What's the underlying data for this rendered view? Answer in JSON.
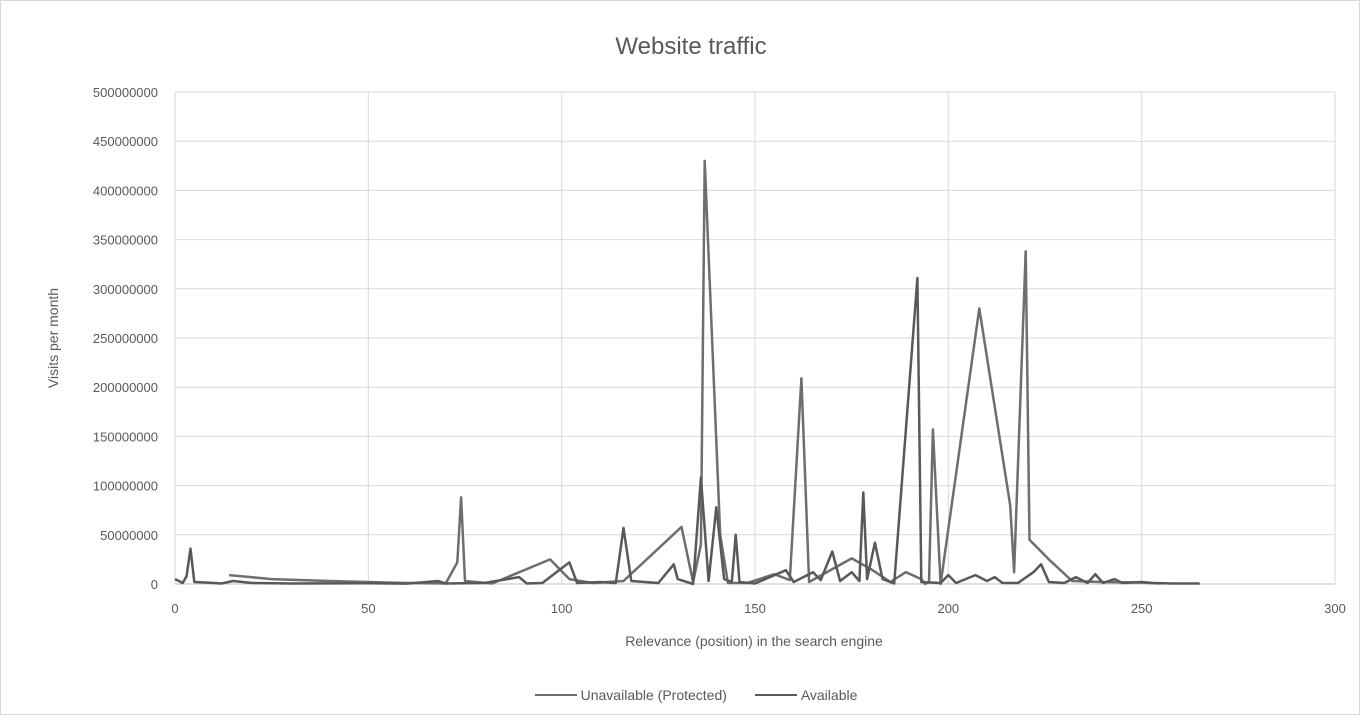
{
  "chart_data": {
    "type": "line",
    "title": "Website traffic",
    "xlabel": "Relevance (position) in the search engine",
    "ylabel": "Visits per month",
    "xlim": [
      0,
      300
    ],
    "ylim": [
      0,
      500000000
    ],
    "x_ticks": [
      "0",
      "50",
      "100",
      "150",
      "200",
      "250",
      "300"
    ],
    "y_ticks": [
      "0",
      "50000000",
      "100000000",
      "150000000",
      "200000000",
      "250000000",
      "300000000",
      "350000000",
      "400000000",
      "450000000",
      "500000000"
    ],
    "grid": true,
    "legend": "bottom",
    "series": [
      {
        "name": "Unavailable (Protected)",
        "color": "#6e6e6e",
        "points": [
          [
            14,
            9000000
          ],
          [
            25,
            5000000
          ],
          [
            40,
            3000000
          ],
          [
            60,
            1000000
          ],
          [
            70,
            500000
          ],
          [
            73,
            22000000
          ],
          [
            74,
            88000000
          ],
          [
            75,
            3000000
          ],
          [
            82,
            500000
          ],
          [
            97,
            25000000
          ],
          [
            102,
            5000000
          ],
          [
            108,
            1000000
          ],
          [
            116,
            3000000
          ],
          [
            131,
            58000000
          ],
          [
            134,
            2000000
          ],
          [
            136,
            40000000
          ],
          [
            137,
            430000000
          ],
          [
            141,
            50000000
          ],
          [
            143,
            1000000
          ],
          [
            148,
            1000000
          ],
          [
            155,
            10000000
          ],
          [
            159,
            4000000
          ],
          [
            162,
            209000000
          ],
          [
            164,
            2000000
          ],
          [
            175,
            26000000
          ],
          [
            180,
            15000000
          ],
          [
            185,
            2000000
          ],
          [
            189,
            12000000
          ],
          [
            193,
            5000000
          ],
          [
            194,
            0
          ],
          [
            195,
            2000000
          ],
          [
            196,
            157000000
          ],
          [
            198,
            0
          ],
          [
            208,
            280000000
          ],
          [
            216,
            80000000
          ],
          [
            217,
            12000000
          ],
          [
            220,
            338000000
          ],
          [
            221,
            45000000
          ],
          [
            226,
            25000000
          ],
          [
            232,
            3000000
          ],
          [
            240,
            2000000
          ],
          [
            250,
            1500000
          ],
          [
            252,
            1000000
          ],
          [
            255,
            500000
          ]
        ]
      },
      {
        "name": "Available",
        "color": "#595959",
        "points": [
          [
            0,
            5000000
          ],
          [
            1,
            3000000
          ],
          [
            2,
            1000000
          ],
          [
            3,
            8000000
          ],
          [
            4,
            36000000
          ],
          [
            5,
            2000000
          ],
          [
            8,
            1500000
          ],
          [
            12,
            500000
          ],
          [
            15,
            3000000
          ],
          [
            20,
            1000000
          ],
          [
            30,
            500000
          ],
          [
            50,
            800000
          ],
          [
            60,
            400000
          ],
          [
            68,
            3000000
          ],
          [
            70,
            500000
          ],
          [
            80,
            1000000
          ],
          [
            89,
            7000000
          ],
          [
            91,
            500000
          ],
          [
            95,
            1000000
          ],
          [
            102,
            22000000
          ],
          [
            104,
            1000000
          ],
          [
            110,
            2000000
          ],
          [
            114,
            1000000
          ],
          [
            116,
            57000000
          ],
          [
            118,
            3000000
          ],
          [
            125,
            1000000
          ],
          [
            129,
            20000000
          ],
          [
            130,
            5000000
          ],
          [
            134,
            0
          ],
          [
            136,
            108000000
          ],
          [
            138,
            3000000
          ],
          [
            140,
            78000000
          ],
          [
            142,
            5000000
          ],
          [
            144,
            2000000
          ],
          [
            145,
            50000000
          ],
          [
            146,
            2000000
          ],
          [
            150,
            500000
          ],
          [
            158,
            14000000
          ],
          [
            160,
            2000000
          ],
          [
            165,
            12000000
          ],
          [
            167,
            4000000
          ],
          [
            170,
            33000000
          ],
          [
            172,
            3000000
          ],
          [
            175,
            12000000
          ],
          [
            177,
            3000000
          ],
          [
            178,
            93000000
          ],
          [
            179,
            5000000
          ],
          [
            181,
            42000000
          ],
          [
            183,
            5000000
          ],
          [
            186,
            500000
          ],
          [
            192,
            311000000
          ],
          [
            193,
            2000000
          ],
          [
            198,
            1000000
          ],
          [
            200,
            9000000
          ],
          [
            202,
            1000000
          ],
          [
            207,
            9000000
          ],
          [
            210,
            3000000
          ],
          [
            212,
            7000000
          ],
          [
            214,
            1000000
          ],
          [
            218,
            1000000
          ],
          [
            222,
            12000000
          ],
          [
            224,
            20000000
          ],
          [
            226,
            2000000
          ],
          [
            230,
            1000000
          ],
          [
            233,
            7000000
          ],
          [
            236,
            1000000
          ],
          [
            238,
            10000000
          ],
          [
            240,
            1000000
          ],
          [
            243,
            5000000
          ],
          [
            245,
            1000000
          ],
          [
            250,
            2000000
          ],
          [
            253,
            1000000
          ],
          [
            258,
            500000
          ],
          [
            265,
            500000
          ]
        ]
      }
    ]
  }
}
